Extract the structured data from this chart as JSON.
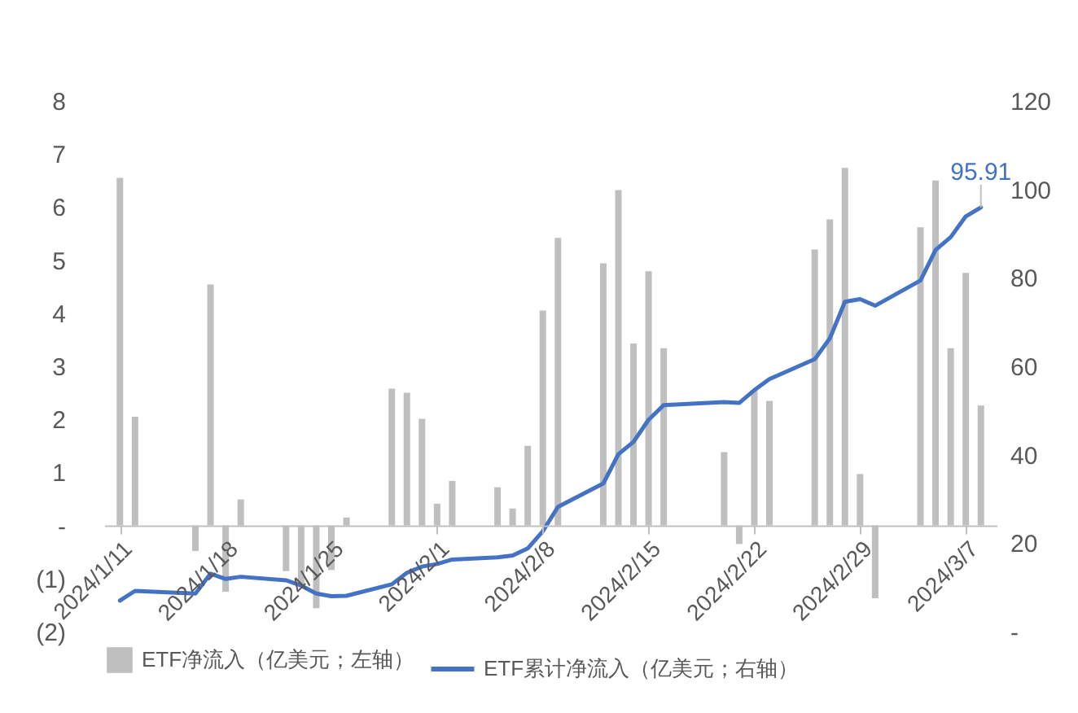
{
  "chart_data": {
    "type": "bar",
    "x": [
      "2024-01-11",
      "2024-01-12",
      "2024-01-16",
      "2024-01-17",
      "2024-01-18",
      "2024-01-19",
      "2024-01-22",
      "2024-01-23",
      "2024-01-24",
      "2024-01-25",
      "2024-01-26",
      "2024-01-29",
      "2024-01-30",
      "2024-01-31",
      "2024-02-01",
      "2024-02-02",
      "2024-02-05",
      "2024-02-06",
      "2024-02-07",
      "2024-02-08",
      "2024-02-09",
      "2024-02-12",
      "2024-02-13",
      "2024-02-14",
      "2024-02-15",
      "2024-02-16",
      "2024-02-20",
      "2024-02-21",
      "2024-02-22",
      "2024-02-23",
      "2024-02-26",
      "2024-02-27",
      "2024-02-28",
      "2024-02-29",
      "2024-03-01",
      "2024-03-04",
      "2024-03-05",
      "2024-03-06",
      "2024-03-07",
      "2024-03-08"
    ],
    "series": [
      {
        "name": "ETF净流入（亿美元；左轴）",
        "color": "#bfbfbf",
        "values": [
          6.55,
          2.05,
          -0.48,
          4.54,
          -1.25,
          0.49,
          -0.86,
          -1.15,
          -1.56,
          -0.84,
          0.15,
          2.58,
          2.5,
          2.01,
          0.41,
          0.84,
          0.72,
          0.32,
          1.5,
          4.05,
          5.42,
          4.94,
          6.32,
          3.43,
          4.79,
          3.34,
          1.38,
          -0.35,
          2.55,
          2.35,
          5.2,
          5.77,
          6.74,
          0.97,
          -1.37,
          5.62,
          6.5,
          3.34,
          4.76,
          2.26
        ]
      },
      {
        "type": "line",
        "axis": "y2",
        "name": "ETF累计净流入（亿美元；右轴）",
        "color": "#4472c4",
        "values": [
          7.0,
          9.2,
          8.6,
          13.1,
          11.9,
          12.4,
          11.6,
          10.4,
          8.6,
          8.0,
          8.1,
          10.7,
          13.3,
          14.7,
          15.3,
          16.3,
          16.8,
          17.2,
          18.8,
          22.7,
          28.2,
          33.5,
          40.1,
          42.9,
          47.9,
          51.2,
          51.9,
          51.7,
          54.6,
          57.1,
          61.6,
          66.3,
          74.6,
          75.2,
          73.7,
          79.4,
          86.3,
          89.2,
          93.9,
          95.91
        ],
        "value_labels": [
          null,
          null,
          null,
          null,
          null,
          null,
          null,
          null,
          null,
          null,
          null,
          null,
          null,
          null,
          null,
          null,
          null,
          null,
          null,
          null,
          null,
          null,
          null,
          null,
          null,
          null,
          null,
          null,
          null,
          null,
          null,
          null,
          null,
          null,
          null,
          null,
          null,
          null,
          null,
          "95.91"
        ]
      }
    ],
    "xlim": [
      "2024-01-10T12:00",
      "2024-03-08T12:00"
    ],
    "xticks": [
      {
        "value": "2024-01-11",
        "label": "2024/1/11"
      },
      {
        "value": "2024-01-18",
        "label": "2024/1/18"
      },
      {
        "value": "2024-01-25",
        "label": "2024/1/25"
      },
      {
        "value": "2024-02-01",
        "label": "2024/2/1"
      },
      {
        "value": "2024-02-08",
        "label": "2024/2/8"
      },
      {
        "value": "2024-02-15",
        "label": "2024/2/15"
      },
      {
        "value": "2024-02-22",
        "label": "2024/2/22"
      },
      {
        "value": "2024-02-29",
        "label": "2024/2/29"
      },
      {
        "value": "2024-03-07",
        "label": "2024/3/7"
      }
    ],
    "ylim": [
      -2,
      8
    ],
    "yticks": [
      {
        "value": -2,
        "label": "(2)"
      },
      {
        "value": -1,
        "label": "(1)"
      },
      {
        "value": 0,
        "label": "-"
      },
      1,
      2,
      3,
      4,
      5,
      6,
      7,
      8
    ],
    "y2lim": [
      0,
      120
    ],
    "y2ticks": [
      {
        "value": 0,
        "label": "-"
      },
      20,
      40,
      60,
      80,
      100,
      120
    ],
    "legend": "bottom"
  }
}
